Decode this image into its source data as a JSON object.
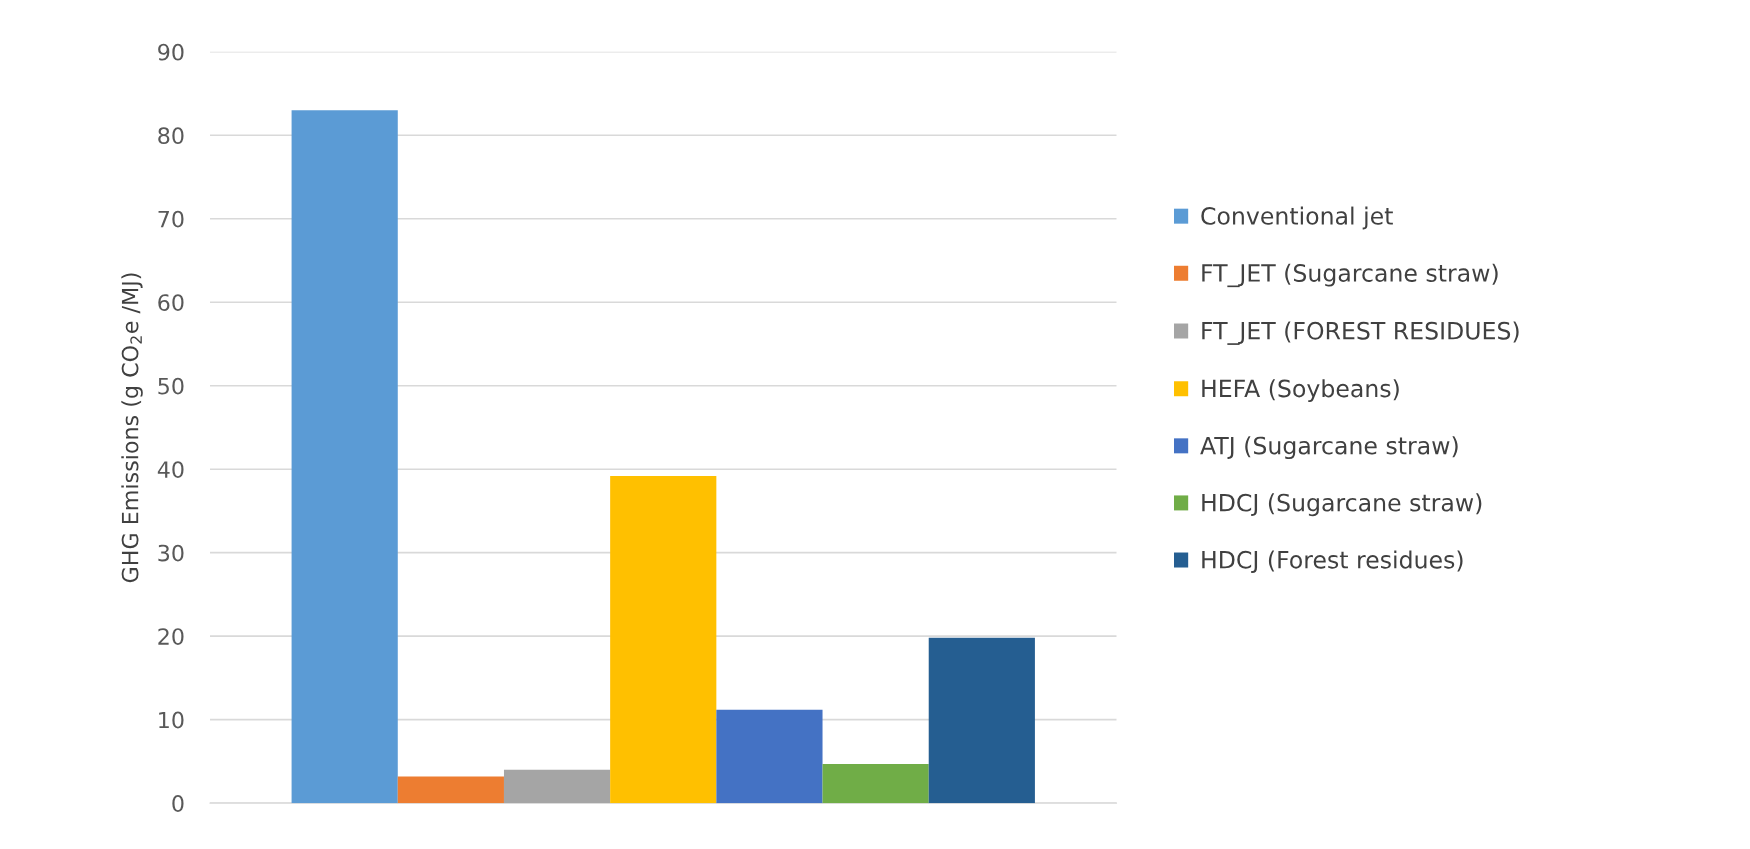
{
  "chart_data": {
    "type": "bar",
    "ylabel": "GHG Emissions (g CO$_{2}$e /MJ)",
    "categories": [
      null
    ],
    "series": [
      {
        "name": "Conventional jet",
        "color": "#5b9bd5",
        "values": [
          83
        ]
      },
      {
        "name": "FT_JET (Sugarcane straw)",
        "color": "#ed7d31",
        "values": [
          3.2
        ]
      },
      {
        "name": "FT_JET (FOREST RESIDUES)",
        "color": "#a5a5a5",
        "values": [
          4
        ]
      },
      {
        "name": "HEFA (Soybeans)",
        "color": "#ffc000",
        "values": [
          39.2
        ]
      },
      {
        "name": "ATJ (Sugarcane straw)",
        "color": "#4472c4",
        "values": [
          11.2
        ]
      },
      {
        "name": "HDCJ (Sugarcane straw)",
        "color": "#70ad47",
        "values": [
          4.7
        ]
      },
      {
        "name": "HDCJ (Forest residues)",
        "color": "#255e91",
        "values": [
          19.8
        ]
      }
    ],
    "ylim": [
      0,
      90
    ],
    "yticks": [
      0,
      10,
      20,
      30,
      40,
      50,
      60,
      70,
      80,
      90
    ],
    "grid": "y",
    "legend": "right"
  }
}
